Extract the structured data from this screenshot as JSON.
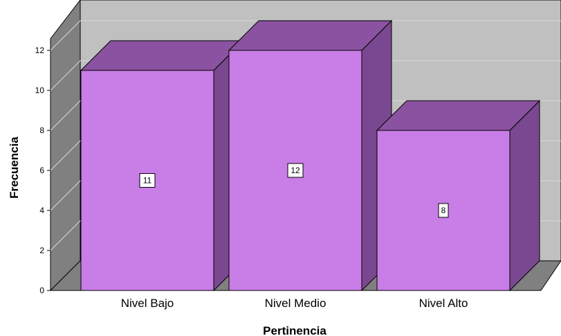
{
  "chart_data": {
    "type": "bar",
    "style": "3d",
    "categories": [
      "Nivel Bajo",
      "Nivel Medio",
      "Nivel Alto"
    ],
    "values": [
      11,
      12,
      8
    ],
    "xlabel": "Pertinencia",
    "ylabel": "Frecuencia",
    "ylim": [
      0,
      12
    ],
    "yticks": [
      0,
      2,
      4,
      6,
      8,
      10,
      12
    ],
    "grid": true,
    "data_labels": true,
    "colors": {
      "bar_front": "#c97de6",
      "bar_top": "#8a52a0",
      "bar_side": "#7a4890",
      "back_wall": "#c0c0c0",
      "side_wall": "#808080",
      "floor": "#808080"
    }
  }
}
